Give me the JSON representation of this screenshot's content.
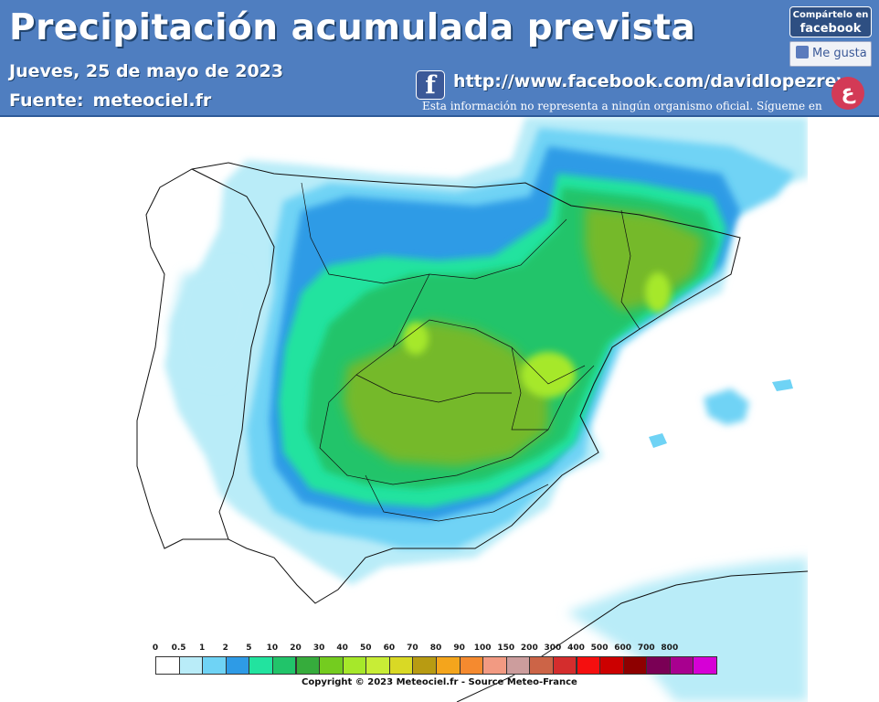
{
  "header": {
    "title": "Precipitación acumulada prevista",
    "date": "Jueves, 25 de mayo de 2023",
    "source_label": "Fuente:",
    "source_value": "meteociel.fr",
    "facebook_url": "http://www.facebook.com/davidlopezrey",
    "disclaimer": "Esta información no representa a ningún organismo oficial. Sígueme en",
    "share_small": "Compártelo en",
    "share_big": "facebook",
    "like_label": "Me gusta",
    "fb_glyph": "f",
    "logo_glyph": "ع"
  },
  "legend": {
    "ticks": [
      "0",
      "0.5",
      "1",
      "2",
      "5",
      "10",
      "20",
      "30",
      "40",
      "50",
      "60",
      "70",
      "80",
      "90",
      "100",
      "150",
      "200",
      "300",
      "400",
      "500",
      "600",
      "700",
      "800"
    ],
    "colors": [
      "#ffffff",
      "#b9ecf8",
      "#6fd3f5",
      "#2e9be6",
      "#22e39f",
      "#21c46a",
      "#36ac3c",
      "#74cc1f",
      "#a6e82a",
      "#c8ed36",
      "#d9d925",
      "#b89b12",
      "#f4a51c",
      "#f58a2f",
      "#f29a82",
      "#cc9d9d",
      "#cc6447",
      "#d42d2d",
      "#f50f0f",
      "#cc0000",
      "#8e0000",
      "#7a0055",
      "#a8008f",
      "#d600d6"
    ],
    "copyright": "Copyright © 2023 Meteociel.fr - Source Meteo-France"
  },
  "map": {
    "colors": {
      "sea": "#ffffff",
      "light_blue": "#b9ecf8",
      "mid_blue": "#6fd3f5",
      "blue": "#2e9be6",
      "teal": "#22e39f",
      "green": "#21c46a",
      "olive": "#74b92a",
      "yellow_green": "#a6e82a",
      "border": "#111111"
    }
  }
}
